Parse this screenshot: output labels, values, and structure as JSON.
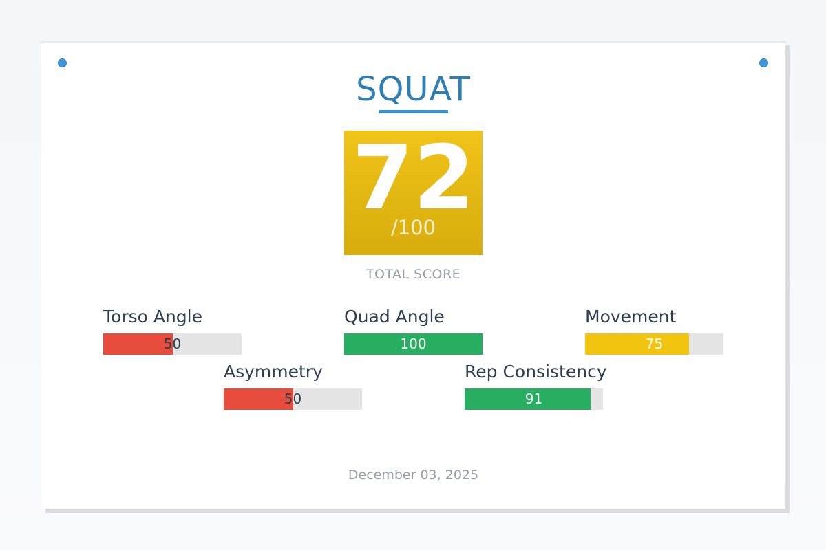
{
  "exercise": {
    "title": "SQUAT"
  },
  "score": {
    "value": "72",
    "max_label": "/100",
    "caption": "TOTAL SCORE",
    "color": "#f0c419"
  },
  "metrics": [
    {
      "label": "Torso Angle",
      "value": "50",
      "fraction": 0.5,
      "color": "#e74c3c"
    },
    {
      "label": "Quad Angle",
      "value": "100",
      "fraction": 1.0,
      "color": "#27ae60"
    },
    {
      "label": "Movement",
      "value": "75",
      "fraction": 0.75,
      "color": "#f1c40f"
    },
    {
      "label": "Asymmetry",
      "value": "50",
      "fraction": 0.5,
      "color": "#e74c3c"
    },
    {
      "label": "Rep Consistency",
      "value": "91",
      "fraction": 0.91,
      "color": "#27ae60"
    }
  ],
  "date": "December 03, 2025"
}
